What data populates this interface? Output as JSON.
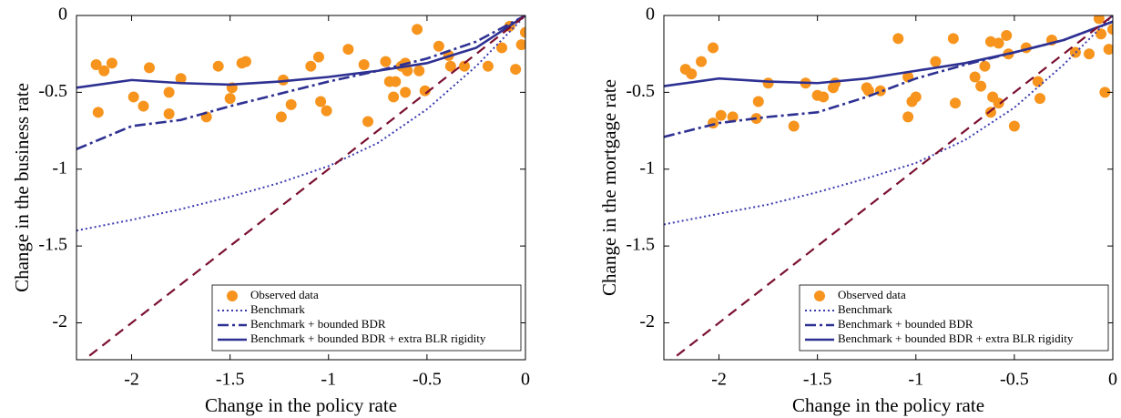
{
  "chart_data": [
    {
      "type": "scatter",
      "xlabel": "Change in the policy rate",
      "ylabel": "Change in the business rate",
      "xlim": [
        -2.28,
        0
      ],
      "ylim": [
        -2.24,
        0
      ],
      "xticks": [
        -2,
        -1.5,
        -1,
        -0.5,
        0
      ],
      "yticks": [
        0,
        -0.5,
        -1,
        -1.5,
        -2
      ],
      "legend": "lower right",
      "series": [
        {
          "name": "Observed data",
          "type": "scatter",
          "color": "#f7941d",
          "x": [
            -2.18,
            -2.14,
            -2.1,
            -2.17,
            -1.99,
            -1.94,
            -1.91,
            -1.81,
            -1.81,
            -1.75,
            -1.62,
            -1.56,
            -1.49,
            -1.5,
            -1.42,
            -1.44,
            -1.24,
            -1.23,
            -1.19,
            -1.05,
            -1.09,
            -1.04,
            -1.01,
            -0.9,
            -0.82,
            -0.8,
            -0.71,
            -0.69,
            -0.66,
            -0.67,
            -0.63,
            -0.61,
            -0.6,
            -0.61,
            -0.54,
            -0.55,
            -0.51,
            -0.44,
            -0.39,
            -0.38,
            -0.31,
            -0.19,
            -0.12,
            -0.08,
            -0.05,
            -0.02,
            0.0
          ],
          "values": [
            -0.32,
            -0.36,
            -0.31,
            -0.63,
            -0.53,
            -0.59,
            -0.34,
            -0.5,
            -0.64,
            -0.41,
            -0.66,
            -0.33,
            -0.47,
            -0.54,
            -0.3,
            -0.31,
            -0.66,
            -0.42,
            -0.58,
            -0.27,
            -0.33,
            -0.56,
            -0.62,
            -0.22,
            -0.32,
            -0.69,
            -0.3,
            -0.43,
            -0.43,
            -0.53,
            -0.33,
            -0.5,
            -0.36,
            -0.31,
            -0.36,
            -0.09,
            -0.49,
            -0.2,
            -0.26,
            -0.33,
            -0.33,
            -0.33,
            -0.21,
            -0.07,
            -0.35,
            -0.19,
            -0.11
          ]
        },
        {
          "name": "Benchmark",
          "type": "line",
          "dash": "dotted",
          "color": "#3b3bb0",
          "x": [
            -2.28,
            -2,
            -1.75,
            -1.5,
            -1.25,
            -1,
            -0.75,
            -0.5,
            -0.25,
            0
          ],
          "values": [
            -1.4,
            -1.33,
            -1.26,
            -1.18,
            -1.09,
            -0.98,
            -0.83,
            -0.61,
            -0.33,
            0
          ]
        },
        {
          "name": "Benchmark + bounded BDR",
          "type": "line",
          "dash": "dashdot",
          "color": "#2e3192",
          "x": [
            -2.28,
            -2,
            -1.75,
            -1.5,
            -1.25,
            -1,
            -0.75,
            -0.5,
            -0.25,
            0
          ],
          "values": [
            -0.87,
            -0.72,
            -0.68,
            -0.59,
            -0.51,
            -0.43,
            -0.36,
            -0.28,
            -0.17,
            0
          ]
        },
        {
          "name": "Benchmark + bounded BDR + extra BLR rigidity",
          "type": "line",
          "dash": "solid",
          "color": "#2e3192",
          "x": [
            -2.28,
            -2,
            -1.75,
            -1.5,
            -1.25,
            -1,
            -0.75,
            -0.5,
            -0.25,
            0
          ],
          "values": [
            -0.47,
            -0.42,
            -0.44,
            -0.45,
            -0.43,
            -0.4,
            -0.36,
            -0.31,
            -0.21,
            0
          ]
        },
        {
          "type": "line",
          "dash": "dashed",
          "color": "#7b1030",
          "x": [
            -2.28,
            0
          ],
          "values": [
            -2.28,
            0
          ]
        }
      ]
    },
    {
      "type": "scatter",
      "xlabel": "Change in the policy rate",
      "ylabel": "Change in the mortgage rate",
      "xlim": [
        -2.28,
        0
      ],
      "ylim": [
        -2.24,
        0
      ],
      "xticks": [
        -2,
        -1.5,
        -1,
        -0.5,
        0
      ],
      "yticks": [
        0,
        -0.5,
        -1,
        -1.5,
        -2
      ],
      "legend": "lower right",
      "series": [
        {
          "name": "Observed data",
          "type": "scatter",
          "color": "#f7941d",
          "x": [
            -2.17,
            -2.14,
            -2.09,
            -2.03,
            -2.03,
            -1.99,
            -1.93,
            -1.81,
            -1.8,
            -1.75,
            -1.62,
            -1.56,
            -1.5,
            -1.47,
            -1.42,
            -1.41,
            -1.25,
            -1.24,
            -1.18,
            -1.09,
            -1.04,
            -1.02,
            -1.0,
            -1.04,
            -0.9,
            -0.81,
            -0.8,
            -0.7,
            -0.67,
            -0.65,
            -0.62,
            -0.58,
            -0.61,
            -0.62,
            -0.58,
            -0.54,
            -0.53,
            -0.5,
            -0.44,
            -0.38,
            -0.37,
            -0.31,
            -0.19,
            -0.12,
            -0.07,
            -0.04,
            -0.06,
            -0.02,
            0.0
          ],
          "values": [
            -0.35,
            -0.38,
            -0.3,
            -0.21,
            -0.7,
            -0.65,
            -0.66,
            -0.67,
            -0.56,
            -0.44,
            -0.72,
            -0.44,
            -0.52,
            -0.53,
            -0.47,
            -0.44,
            -0.47,
            -0.49,
            -0.49,
            -0.15,
            -0.66,
            -0.56,
            -0.53,
            -0.4,
            -0.3,
            -0.15,
            -0.57,
            -0.4,
            -0.46,
            -0.33,
            -0.17,
            -0.18,
            -0.53,
            -0.63,
            -0.57,
            -0.13,
            -0.25,
            -0.72,
            -0.21,
            -0.43,
            -0.54,
            -0.16,
            -0.24,
            -0.25,
            -0.02,
            -0.5,
            -0.12,
            -0.22,
            -0.09
          ]
        },
        {
          "name": "Benchmark",
          "type": "line",
          "dash": "dotted",
          "color": "#3b3bb0",
          "x": [
            -2.28,
            -2,
            -1.75,
            -1.5,
            -1.25,
            -1,
            -0.75,
            -0.5,
            -0.25,
            0
          ],
          "values": [
            -1.36,
            -1.29,
            -1.23,
            -1.15,
            -1.06,
            -0.96,
            -0.81,
            -0.6,
            -0.32,
            0
          ]
        },
        {
          "name": "Benchmark + bounded BDR",
          "type": "line",
          "dash": "dashdot",
          "color": "#2e3192",
          "x": [
            -2.28,
            -2,
            -1.75,
            -1.5,
            -1.25,
            -1,
            -0.75,
            -0.5,
            -0.25,
            0
          ],
          "values": [
            -0.79,
            -0.7,
            -0.66,
            -0.63,
            -0.53,
            -0.41,
            -0.32,
            -0.24,
            -0.16,
            -0.04
          ]
        },
        {
          "name": "Benchmark + bounded BDR + extra BLR rigidity",
          "type": "line",
          "dash": "solid",
          "color": "#2e3192",
          "x": [
            -2.28,
            -2,
            -1.75,
            -1.5,
            -1.25,
            -1,
            -0.75,
            -0.5,
            -0.25,
            0
          ],
          "values": [
            -0.46,
            -0.41,
            -0.43,
            -0.44,
            -0.41,
            -0.36,
            -0.31,
            -0.24,
            -0.16,
            -0.04
          ]
        },
        {
          "type": "line",
          "dash": "dashed",
          "color": "#7b1030",
          "x": [
            -2.28,
            0
          ],
          "values": [
            -2.28,
            0
          ]
        }
      ]
    }
  ]
}
